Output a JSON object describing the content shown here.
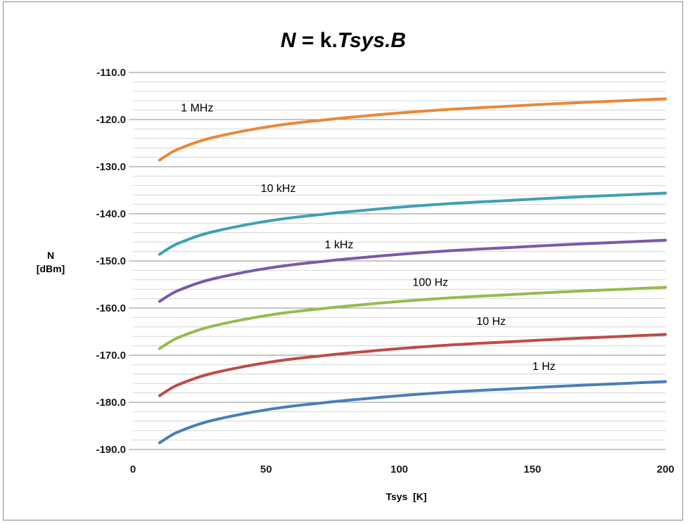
{
  "chart_data": {
    "type": "line",
    "title": {
      "segments": [
        {
          "text": "N",
          "italic": true
        },
        {
          "text": " = k.",
          "italic": false
        },
        {
          "text": "Tsys.B",
          "italic": true
        }
      ]
    },
    "xlabel": "Tsys  [K]",
    "ylabel_lines": [
      "N",
      "[dBm]"
    ],
    "xlim": [
      0,
      200
    ],
    "ylim": [
      -190,
      -110
    ],
    "x_ticks": [
      0,
      50,
      100,
      150,
      200
    ],
    "x_tick_labels": [
      "0",
      "50",
      "100",
      "150",
      "200"
    ],
    "y_ticks": [
      -110,
      -120,
      -130,
      -140,
      -150,
      -160,
      -170,
      -180,
      -190
    ],
    "y_tick_labels": [
      "-110.0",
      "-120.0",
      "-130.0",
      "-140.0",
      "-150.0",
      "-160.0",
      "-170.0",
      "-180.0",
      "-190.0"
    ],
    "y_minor_step": 2,
    "grid": true,
    "legend": "inline labels",
    "x": [
      10,
      15,
      20,
      25,
      30,
      40,
      50,
      60,
      70,
      80,
      100,
      120,
      140,
      160,
      180,
      200
    ],
    "series": [
      {
        "name": "1 MHz",
        "color": "#e8883a",
        "values": [
          -128.6,
          -126.8,
          -125.6,
          -124.6,
          -123.8,
          -122.6,
          -121.6,
          -120.8,
          -120.2,
          -119.6,
          -118.6,
          -117.8,
          -117.2,
          -116.6,
          -116.1,
          -115.6
        ]
      },
      {
        "name": "10 kHz",
        "color": "#3fa0b4",
        "values": [
          -148.6,
          -146.8,
          -145.6,
          -144.6,
          -143.8,
          -142.6,
          -141.6,
          -140.8,
          -140.2,
          -139.6,
          -138.6,
          -137.8,
          -137.2,
          -136.6,
          -136.1,
          -135.6
        ]
      },
      {
        "name": "1 kHz",
        "color": "#7a5aa6",
        "values": [
          -158.6,
          -156.8,
          -155.6,
          -154.6,
          -153.8,
          -152.6,
          -151.6,
          -150.8,
          -150.2,
          -149.6,
          -148.6,
          -147.8,
          -147.2,
          -146.6,
          -146.1,
          -145.6
        ]
      },
      {
        "name": "100 Hz",
        "color": "#96bb4f",
        "values": [
          -168.6,
          -166.8,
          -165.6,
          -164.6,
          -163.8,
          -162.6,
          -161.6,
          -160.8,
          -160.2,
          -159.6,
          -158.6,
          -157.8,
          -157.2,
          -156.6,
          -156.1,
          -155.6
        ]
      },
      {
        "name": "10 Hz",
        "color": "#be4b48",
        "values": [
          -178.6,
          -176.8,
          -175.6,
          -174.6,
          -173.8,
          -172.6,
          -171.6,
          -170.8,
          -170.2,
          -169.6,
          -168.6,
          -167.8,
          -167.2,
          -166.6,
          -166.1,
          -165.6
        ]
      },
      {
        "name": "1 Hz",
        "color": "#4a7ebb",
        "values": [
          -188.6,
          -186.8,
          -185.6,
          -184.6,
          -183.8,
          -182.6,
          -181.6,
          -180.8,
          -180.2,
          -179.6,
          -178.6,
          -177.8,
          -177.2,
          -176.6,
          -176.1,
          -175.6
        ]
      }
    ],
    "annotations": [
      {
        "text": "1 MHz",
        "x": 18,
        "y": -118.3
      },
      {
        "text": "10 kHz",
        "x": 48,
        "y": -135.4
      },
      {
        "text": "1 kHz",
        "x": 72,
        "y": -147.3
      },
      {
        "text": "100 Hz",
        "x": 105,
        "y": -155.3
      },
      {
        "text": "10 Hz",
        "x": 129,
        "y": -163.6
      },
      {
        "text": "1 Hz",
        "x": 150,
        "y": -173.1
      }
    ]
  }
}
